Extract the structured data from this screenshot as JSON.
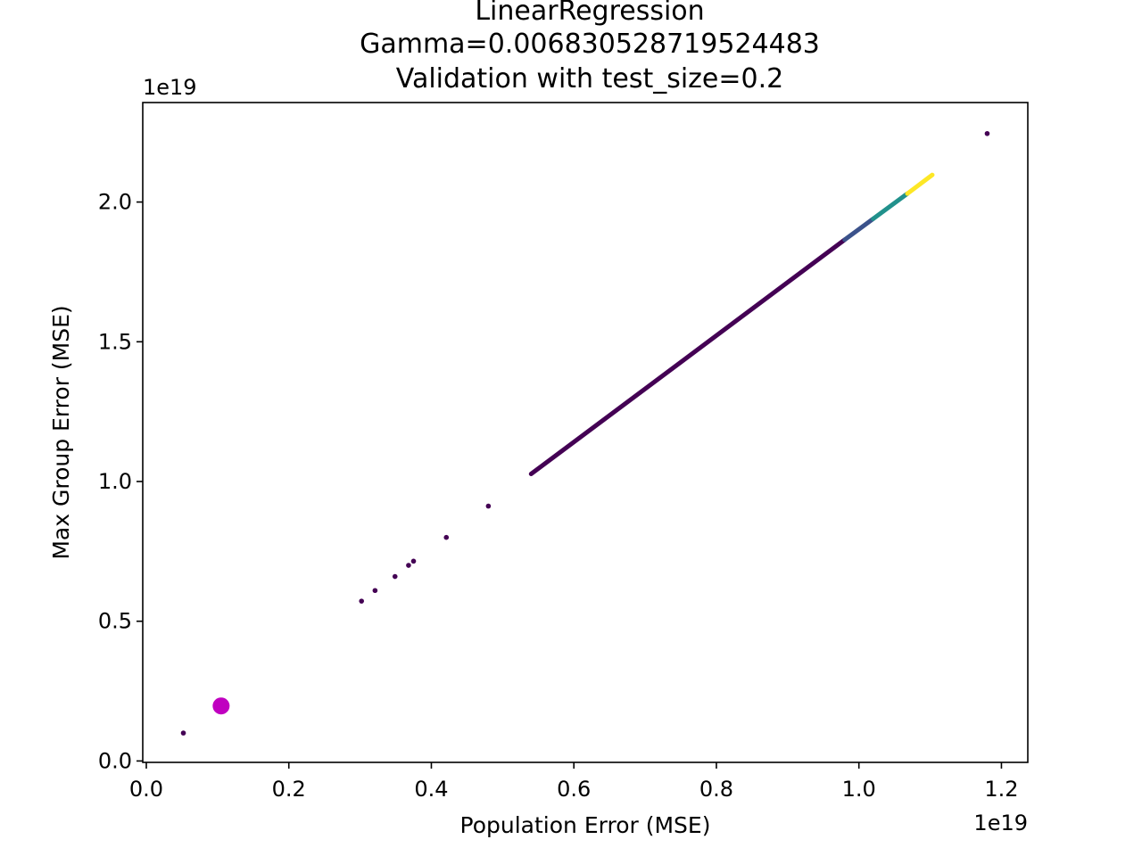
{
  "chart_data": {
    "type": "scatter",
    "title_lines": [
      "LinearRegression",
      "Gamma=0.006830528719524483",
      "Validation with test_size=0.2"
    ],
    "xlabel": "Population Error (MSE)",
    "ylabel": "Max Group Error (MSE)",
    "x_offset_label": "1e19",
    "y_offset_label": "1e19",
    "xlim": [
      -0.005,
      1.237
    ],
    "ylim": [
      -0.005,
      2.356
    ],
    "xticks": [
      0.0,
      0.2,
      0.4,
      0.6,
      0.8,
      1.0,
      1.2
    ],
    "xtick_labels": [
      "0.0",
      "0.2",
      "0.4",
      "0.6",
      "0.8",
      "1.0",
      "1.2"
    ],
    "yticks": [
      0.0,
      0.5,
      1.0,
      1.5,
      2.0
    ],
    "ytick_labels": [
      "0.0",
      "0.5",
      "1.0",
      "1.5",
      "2.0"
    ],
    "grid": false,
    "colormap": [
      "#440154",
      "#3b528b",
      "#21918c",
      "#5ec962",
      "#fde725"
    ],
    "highlight_color": "#c000c0",
    "points": [
      {
        "x": 0.052,
        "y": 0.1
      },
      {
        "x": 0.302,
        "y": 0.572
      },
      {
        "x": 0.321,
        "y": 0.61
      },
      {
        "x": 0.349,
        "y": 0.66
      },
      {
        "x": 0.368,
        "y": 0.7
      },
      {
        "x": 0.375,
        "y": 0.715
      },
      {
        "x": 0.421,
        "y": 0.8
      },
      {
        "x": 0.48,
        "y": 0.912
      },
      {
        "x": 1.18,
        "y": 2.245
      }
    ],
    "segments": [
      {
        "x0": 0.54,
        "y0": 1.027,
        "x1": 0.98,
        "y1": 1.865,
        "color_index": 0
      },
      {
        "x0": 0.98,
        "y0": 1.865,
        "x1": 1.02,
        "y1": 1.94,
        "color_index": 1
      },
      {
        "x0": 1.02,
        "y0": 1.94,
        "x1": 1.068,
        "y1": 2.03,
        "color_index": 2
      },
      {
        "x0": 1.068,
        "y0": 2.03,
        "x1": 1.103,
        "y1": 2.097,
        "color_index": 4
      }
    ],
    "highlight_point": {
      "x": 0.105,
      "y": 0.197
    }
  }
}
